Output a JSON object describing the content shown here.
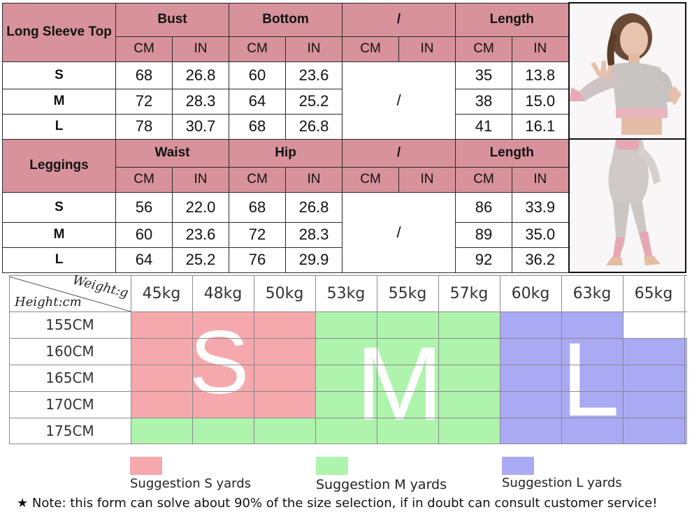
{
  "top_table": {
    "section1": {
      "title": "Long Sleeve Top",
      "groups": [
        "Bust",
        "Bottom",
        "/",
        "Length"
      ],
      "units": [
        "CM",
        "IN",
        "CM",
        "IN",
        "CM",
        "IN",
        "CM",
        "IN"
      ],
      "rows": [
        {
          "size": "S",
          "c1": "68",
          "i1": "26.8",
          "c2": "60",
          "i2": "23.6",
          "c4": "35",
          "i4": "13.8"
        },
        {
          "size": "M",
          "c1": "72",
          "i1": "28.3",
          "c2": "64",
          "i2": "25.2",
          "c4": "38",
          "i4": "15.0"
        },
        {
          "size": "L",
          "c1": "78",
          "i1": "30.7",
          "c2": "68",
          "i2": "26.8",
          "c4": "41",
          "i4": "16.1"
        }
      ],
      "merged": "/"
    },
    "section2": {
      "title": "Leggings",
      "groups": [
        "Waist",
        "Hip",
        "/",
        "Length"
      ],
      "units": [
        "CM",
        "IN",
        "CM",
        "IN",
        "CM",
        "IN",
        "CM",
        "IN"
      ],
      "rows": [
        {
          "size": "S",
          "c1": "56",
          "i1": "22.0",
          "c2": "68",
          "i2": "26.8",
          "c4": "86",
          "i4": "33.9"
        },
        {
          "size": "M",
          "c1": "60",
          "i1": "23.6",
          "c2": "72",
          "i2": "28.3",
          "c4": "89",
          "i4": "35.0"
        },
        {
          "size": "L",
          "c1": "64",
          "i1": "25.2",
          "c2": "76",
          "i2": "29.9",
          "c4": "92",
          "i4": "36.2"
        }
      ],
      "merged": "/"
    }
  },
  "chart": {
    "corner_weight": "Weight:g",
    "corner_height": "Height:cm",
    "weights": [
      "45kg",
      "48kg",
      "50kg",
      "53kg",
      "55kg",
      "57kg",
      "60kg",
      "63kg",
      "65kg"
    ],
    "heights": [
      "155CM",
      "160CM",
      "165CM",
      "170CM",
      "175CM"
    ],
    "letters": {
      "s": "S",
      "m": "M",
      "l": "L"
    },
    "colors": {
      "s": "#f6a9ad",
      "m": "#aff4ad",
      "l": "#aaaaf4"
    }
  },
  "legend": {
    "s": "Suggestion S yards",
    "m": "Suggestion M yards",
    "l": "Suggestion L yards"
  },
  "note": "★ Note: this form can solve about 90% of the size selection, if in doubt can consult customer service!"
}
